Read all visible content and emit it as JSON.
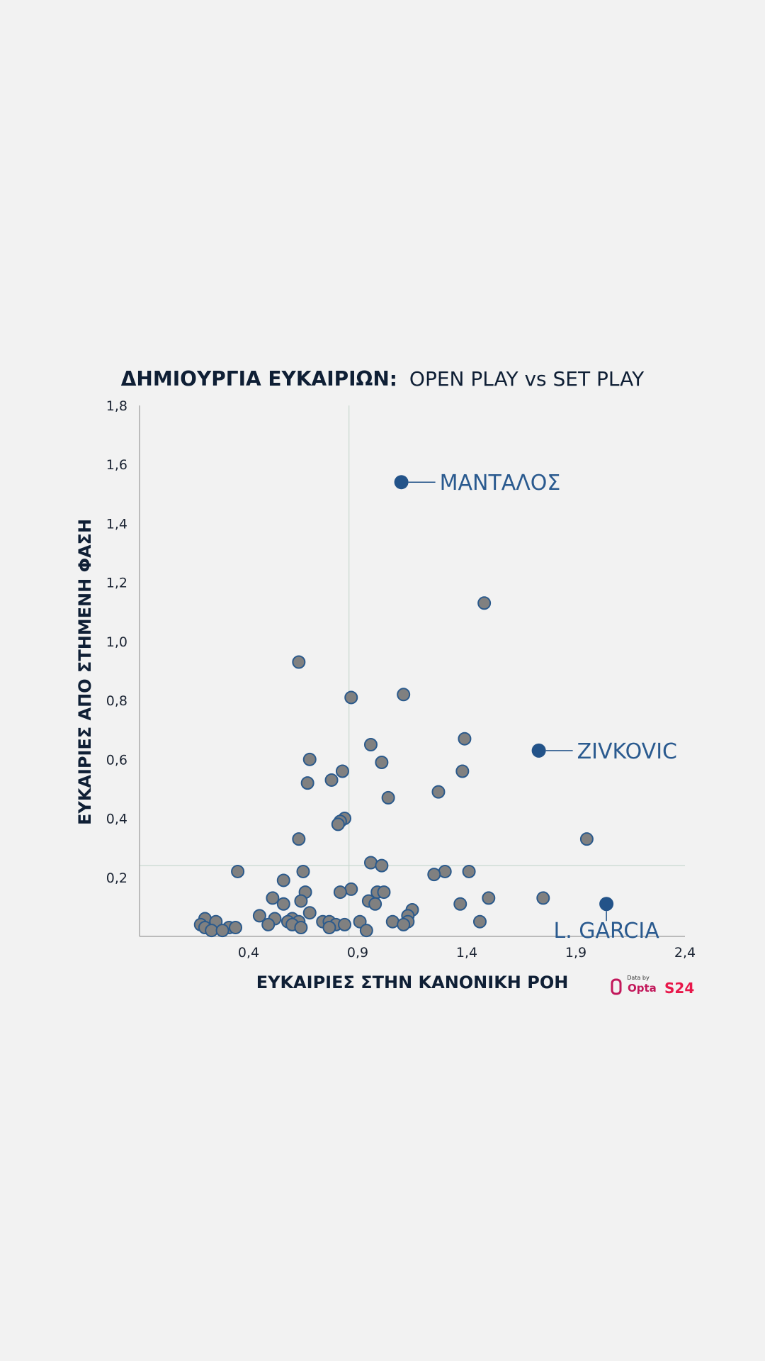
{
  "chart_data": {
    "type": "scatter",
    "title_bold": "ΔΗΜΙΟΥΡΓΙΑ ΕΥΚΑΙΡΙΩΝ:",
    "title_regular": "OPEN PLAY vs SET PLAY",
    "xlabel": "ΕΥΚΑΙΡΙΕΣ ΣΤΗΝ ΚΑΝΟΝΙΚΗ ΡΟΗ",
    "ylabel": "ΕΥΚΑΙΡΙΕΣ ΑΠΟ ΣΤΗΜΕΝΗ ΦΑΣΗ",
    "xlim": [
      -0.1,
      2.4
    ],
    "ylim": [
      0,
      1.8
    ],
    "x_ticks": [
      0.4,
      0.9,
      1.4,
      1.9,
      2.4
    ],
    "x_tick_labels": [
      "0,4",
      "0,9",
      "1,4",
      "1,9",
      "2,4"
    ],
    "y_ticks": [
      0.2,
      0.4,
      0.6,
      0.8,
      1.0,
      1.2,
      1.4,
      1.6,
      1.8
    ],
    "y_tick_labels": [
      "0,2",
      "0,4",
      "0,6",
      "0,8",
      "1,0",
      "1,2",
      "1,4",
      "1,6",
      "1,8"
    ],
    "reference_lines": {
      "x": 0.86,
      "y": 0.24
    },
    "colors": {
      "point_fill": "#808080",
      "point_stroke": "#2b5a8c",
      "highlight": "#235389",
      "label": "#2a5a8f",
      "reference_line": "#c8d8d0",
      "axis": "#9a9a9a"
    },
    "highlighted": [
      {
        "name": "ΜΑΝΤΑΛΟΣ",
        "x": 1.1,
        "y": 1.54
      },
      {
        "name": "ZIVKOVIC",
        "x": 1.73,
        "y": 0.63
      },
      {
        "name": "L. GARCIA",
        "x": 2.04,
        "y": 0.11
      }
    ],
    "points": [
      [
        1.48,
        1.13
      ],
      [
        0.63,
        0.93
      ],
      [
        0.87,
        0.81
      ],
      [
        1.11,
        0.82
      ],
      [
        1.39,
        0.67
      ],
      [
        0.96,
        0.65
      ],
      [
        0.68,
        0.6
      ],
      [
        1.01,
        0.59
      ],
      [
        0.67,
        0.52
      ],
      [
        0.78,
        0.53
      ],
      [
        0.83,
        0.56
      ],
      [
        1.38,
        0.56
      ],
      [
        1.27,
        0.49
      ],
      [
        1.04,
        0.47
      ],
      [
        0.84,
        0.4
      ],
      [
        0.82,
        0.39
      ],
      [
        0.81,
        0.38
      ],
      [
        0.63,
        0.33
      ],
      [
        1.95,
        0.33
      ],
      [
        0.96,
        0.25
      ],
      [
        1.01,
        0.24
      ],
      [
        0.35,
        0.22
      ],
      [
        0.65,
        0.22
      ],
      [
        1.3,
        0.22
      ],
      [
        1.41,
        0.22
      ],
      [
        1.25,
        0.21
      ],
      [
        0.56,
        0.19
      ],
      [
        0.87,
        0.16
      ],
      [
        0.66,
        0.15
      ],
      [
        0.82,
        0.15
      ],
      [
        0.99,
        0.15
      ],
      [
        1.02,
        0.15
      ],
      [
        0.51,
        0.13
      ],
      [
        1.5,
        0.13
      ],
      [
        1.75,
        0.13
      ],
      [
        0.64,
        0.12
      ],
      [
        0.95,
        0.12
      ],
      [
        0.98,
        0.11
      ],
      [
        1.37,
        0.11
      ],
      [
        0.56,
        0.11
      ],
      [
        1.15,
        0.09
      ],
      [
        0.68,
        0.08
      ],
      [
        0.45,
        0.07
      ],
      [
        1.13,
        0.07
      ],
      [
        0.2,
        0.06
      ],
      [
        0.52,
        0.06
      ],
      [
        0.6,
        0.06
      ],
      [
        0.25,
        0.05
      ],
      [
        0.58,
        0.05
      ],
      [
        0.63,
        0.05
      ],
      [
        1.06,
        0.05
      ],
      [
        1.13,
        0.05
      ],
      [
        1.46,
        0.05
      ],
      [
        0.74,
        0.05
      ],
      [
        0.77,
        0.05
      ],
      [
        0.91,
        0.05
      ],
      [
        0.18,
        0.04
      ],
      [
        0.49,
        0.04
      ],
      [
        0.6,
        0.04
      ],
      [
        0.8,
        0.04
      ],
      [
        0.84,
        0.04
      ],
      [
        1.11,
        0.04
      ],
      [
        0.2,
        0.03
      ],
      [
        0.31,
        0.03
      ],
      [
        0.34,
        0.03
      ],
      [
        0.64,
        0.03
      ],
      [
        0.77,
        0.03
      ],
      [
        0.23,
        0.02
      ],
      [
        0.28,
        0.02
      ],
      [
        0.94,
        0.02
      ]
    ]
  },
  "logos": {
    "data_by": "Data by",
    "opta": "Opta",
    "s24": "S24"
  }
}
